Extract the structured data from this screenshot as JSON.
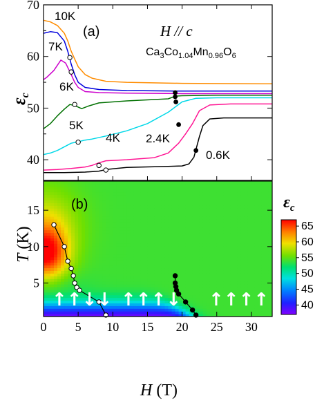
{
  "chart_data": [
    {
      "type": "line",
      "panel": "(a)",
      "annotation_field": "H // c",
      "annotation_compound": "Ca3Co1.04Mn0.96O6",
      "ylabel": "ε_c",
      "xlim": [
        0,
        33
      ],
      "ylim": [
        36,
        70
      ],
      "yticks": [
        40,
        50,
        60,
        70
      ],
      "series": [
        {
          "name": "10K",
          "color": "#ff8c00",
          "x": [
            0,
            1,
            2,
            3,
            3.5,
            4,
            4.5,
            5,
            6,
            7,
            9,
            12,
            20,
            33
          ],
          "y": [
            67,
            66.7,
            66,
            64.5,
            63,
            61,
            59.5,
            58,
            56.5,
            55.8,
            55.2,
            55,
            54.8,
            54.7
          ]
        },
        {
          "name": "7K",
          "color": "#0000dd",
          "x": [
            0,
            1,
            2,
            3,
            3.5,
            4,
            4.5,
            5,
            6,
            8,
            12,
            20,
            33
          ],
          "y": [
            64.5,
            64.8,
            64.6,
            63,
            61,
            58.5,
            56.5,
            55,
            54,
            53.6,
            53.4,
            53.3,
            53.3
          ]
        },
        {
          "name": "6K",
          "color": "#cc00cc",
          "x": [
            0,
            0.5,
            1.5,
            2.5,
            3.2,
            4,
            4.5,
            5,
            6,
            8,
            12,
            20,
            33
          ],
          "y": [
            55.5,
            56,
            57.3,
            59.3,
            58.7,
            56.5,
            55,
            54,
            53.2,
            53,
            52.9,
            52.8,
            52.8
          ]
        },
        {
          "name": "5K",
          "color": "#007000",
          "x": [
            0,
            1,
            2,
            3,
            3.8,
            4.5,
            5.5,
            6.5,
            8,
            12,
            18,
            19,
            20,
            25,
            33
          ],
          "y": [
            46,
            47,
            48.5,
            49.8,
            50.7,
            50.5,
            49.9,
            50.4,
            51,
            51.4,
            51.8,
            52.3,
            52.4,
            52.5,
            52.5
          ]
        },
        {
          "name": "4K",
          "color": "#00d8e8",
          "x": [
            0,
            1,
            2,
            3,
            4,
            5,
            6,
            7,
            9,
            12,
            15,
            18,
            20,
            22,
            25,
            33
          ],
          "y": [
            41,
            41.3,
            41.8,
            42.5,
            43.2,
            43.5,
            43.8,
            44,
            44.6,
            45.6,
            47,
            49.2,
            51.2,
            51.9,
            52,
            52
          ]
        },
        {
          "name": "2.4K",
          "color": "#ff1493",
          "x": [
            0,
            2,
            4,
            6,
            7,
            8,
            9,
            12,
            16,
            18,
            19.5,
            20.5,
            21.5,
            22.5,
            24,
            27,
            33
          ],
          "y": [
            38,
            38.1,
            38.3,
            38.6,
            38.9,
            39.4,
            39.8,
            40,
            40.4,
            41.3,
            43.2,
            45,
            47,
            49.5,
            50.6,
            50.8,
            50.8
          ]
        },
        {
          "name": "0.6K",
          "color": "#000000",
          "x": [
            0,
            3,
            6,
            8,
            9,
            12,
            18,
            20,
            21,
            21.7,
            22,
            22.5,
            23,
            24,
            26,
            33
          ],
          "y": [
            37.5,
            37.5,
            37.6,
            37.8,
            38.1,
            38.5,
            38.7,
            38.8,
            39.2,
            40.5,
            42,
            44.5,
            46.6,
            47.9,
            48.1,
            48.1
          ]
        }
      ],
      "open_markers": [
        [
          3.8,
          59.8
        ],
        [
          4.0,
          57
        ],
        [
          4.5,
          50.7
        ],
        [
          5,
          43.4
        ],
        [
          8,
          38.9
        ],
        [
          9,
          38
        ]
      ],
      "filled_markers": [
        [
          19,
          53
        ],
        [
          19,
          52.2
        ],
        [
          19.1,
          51.2
        ],
        [
          19.5,
          46.8
        ],
        [
          22,
          41.8
        ]
      ],
      "curve_labels": [
        "10K",
        "7K",
        "6K",
        "5K",
        "4K",
        "2.4K",
        "0.6K"
      ]
    },
    {
      "type": "heatmap",
      "panel": "(b)",
      "xlabel": "H (T)",
      "ylabel": "T (K)",
      "xlim": [
        0,
        33
      ],
      "ylim": [
        0.4,
        19
      ],
      "xticks": [
        0,
        5,
        10,
        15,
        20,
        25,
        30
      ],
      "yticks": [
        5,
        10,
        15
      ],
      "colorbar_label": "ε_c",
      "colorbar_range": [
        37,
        67
      ],
      "colorbar_ticks": [
        40,
        45,
        50,
        55,
        60,
        65
      ],
      "open_boundary": {
        "H": [
          1.5,
          3,
          3.5,
          4,
          4.3,
          4.5,
          4.8,
          5.2,
          8,
          9
        ],
        "T": [
          13,
          10,
          8,
          7,
          6,
          5,
          4.4,
          4,
          2.4,
          0.6
        ]
      },
      "filled_boundary": {
        "H": [
          19,
          19,
          19.1,
          19.2,
          19.5,
          20.5,
          21.5,
          22
        ],
        "T": [
          6,
          5,
          4.5,
          4,
          3.5,
          2.4,
          1.3,
          0.6
        ]
      },
      "arrow_labels": [
        "↑↑↓↓",
        "↑↑↑↓",
        "↑↑↑↑"
      ]
    }
  ]
}
